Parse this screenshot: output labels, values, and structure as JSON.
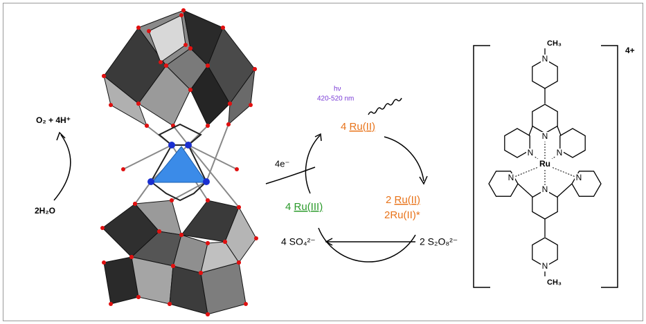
{
  "water_oxidation": {
    "product": "O₂ + 4H⁺",
    "reactant": "2H₂O"
  },
  "light": {
    "symbol": "hν",
    "range": "420-520 nm"
  },
  "cycle": {
    "top": {
      "count": "4",
      "species": "Ru(II)"
    },
    "electrons": "4e⁻",
    "right": {
      "count": "2",
      "species": "Ru(II)",
      "excited": "2Ru(II)*"
    },
    "left": {
      "count": "4",
      "species": "Ru(III)"
    },
    "product": "4 SO₄²⁻",
    "oxidant": "2 S₂O₈²⁻"
  },
  "complex": {
    "charge": "4+",
    "metal": "Ru",
    "methyl_top": "CH₃",
    "methyl_bottom": "CH₃",
    "nitrogens": [
      "N",
      "N",
      "N",
      "N",
      "N",
      "N",
      "N",
      "N"
    ]
  }
}
